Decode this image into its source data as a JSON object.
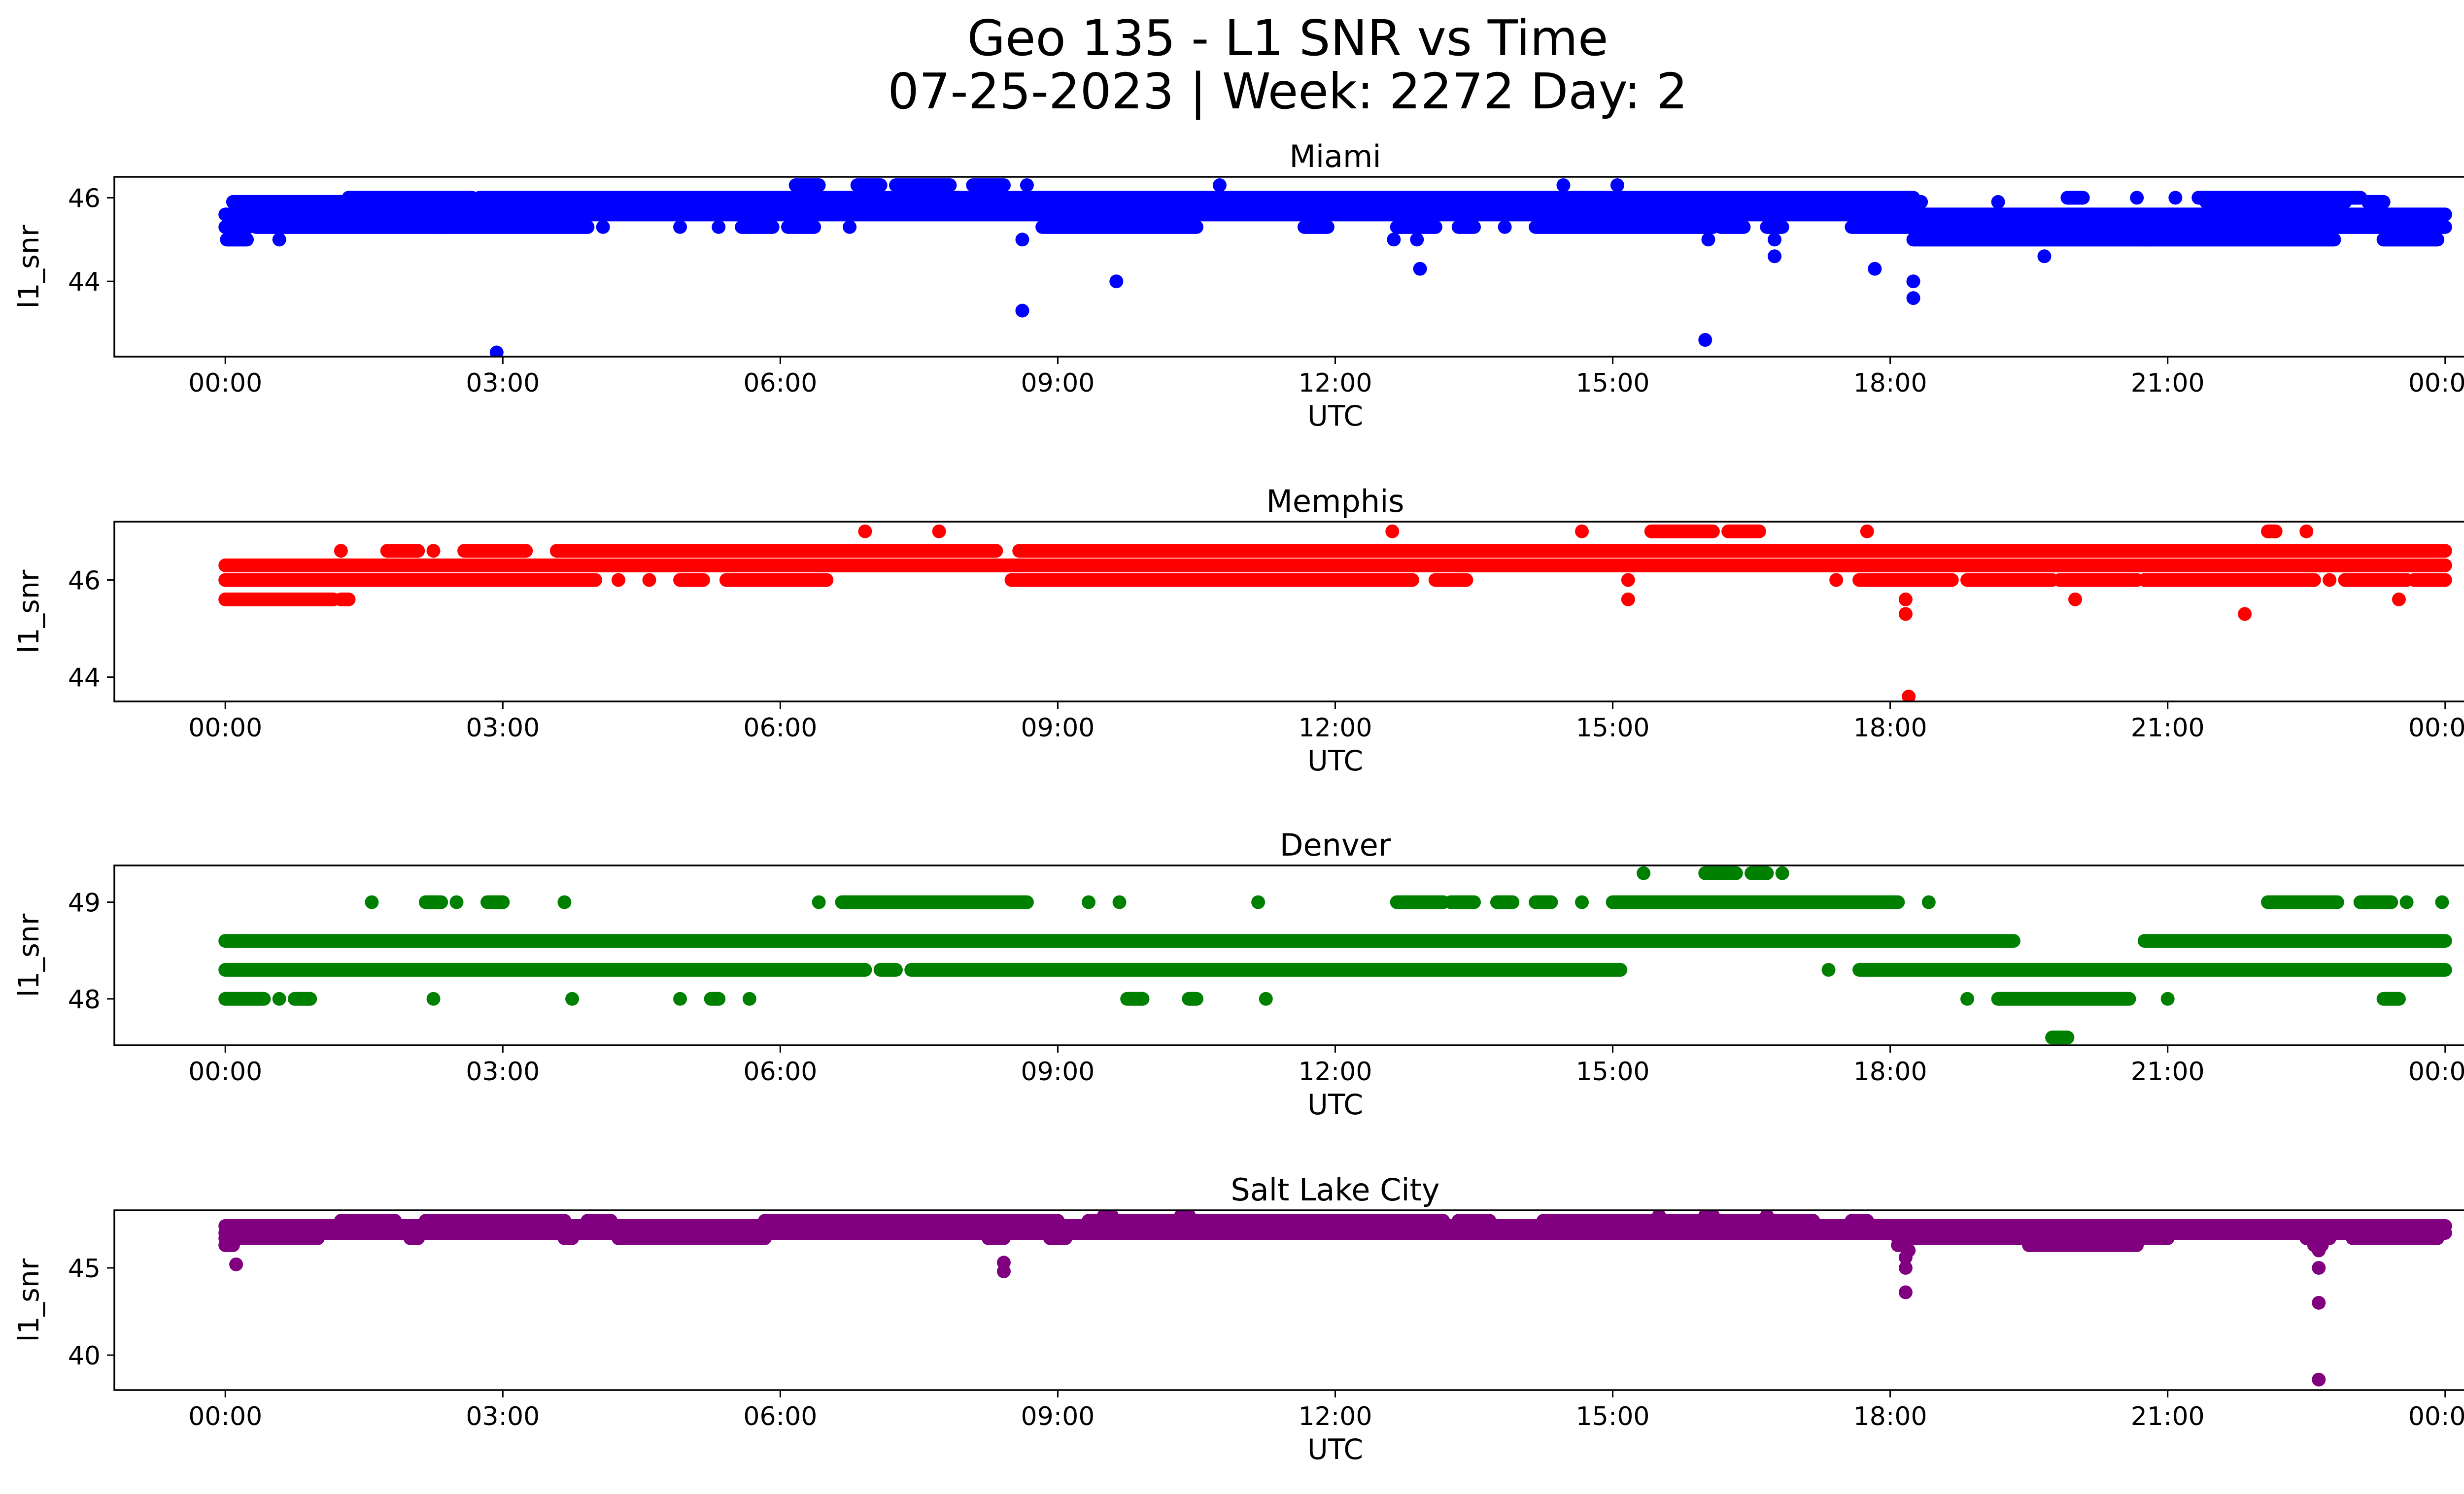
{
  "title_line1": "Geo 135 - L1 SNR vs Time",
  "title_line2": "07-25-2023 | Week: 2272 Day: 2",
  "chart_data": [
    {
      "type": "scatter",
      "title": "Miami",
      "xlabel": "UTC",
      "ylabel": "l1_snr",
      "color": "#0000ff",
      "xlim": [
        "00:00",
        "24:00"
      ],
      "ylim": [
        42.2,
        46.5
      ],
      "x_ticks": [
        "00:00",
        "03:00",
        "06:00",
        "09:00",
        "12:00",
        "15:00",
        "18:00",
        "21:00",
        "00:00"
      ],
      "y_ticks": [
        44,
        46
      ],
      "bands": [
        {
          "y": 45.0,
          "segments": [
            [
              "00:01",
              "00:14"
            ],
            [
              "00:35",
              "00:36"
            ],
            [
              "08:37",
              "08:38"
            ],
            [
              "12:38",
              "12:39"
            ],
            [
              "16:02",
              "16:03"
            ],
            [
              "18:15",
              "20:45"
            ],
            [
              "20:45",
              "22:48"
            ],
            [
              "23:20",
              "23:55"
            ]
          ]
        },
        {
          "y": 45.3,
          "segments": [
            [
              "00:00",
              "00:15"
            ],
            [
              "00:20",
              "02:20"
            ],
            [
              "02:20",
              "03:55"
            ],
            [
              "04:05",
              "04:06"
            ],
            [
              "04:55",
              "04:56"
            ],
            [
              "05:20",
              "05:21"
            ],
            [
              "05:35",
              "05:55"
            ],
            [
              "06:05",
              "06:22"
            ],
            [
              "06:45",
              "06:46"
            ],
            [
              "08:50",
              "10:30"
            ],
            [
              "11:40",
              "11:55"
            ],
            [
              "12:40",
              "13:05"
            ],
            [
              "13:20",
              "13:30"
            ],
            [
              "13:50",
              "13:51"
            ],
            [
              "14:10",
              "16:05"
            ],
            [
              "16:10",
              "16:25"
            ],
            [
              "16:40",
              "16:50"
            ],
            [
              "17:35",
              "24:00"
            ]
          ]
        },
        {
          "y": 45.6,
          "segments": [
            [
              "00:00",
              "24:00"
            ]
          ]
        },
        {
          "y": 45.9,
          "segments": [
            [
              "00:05",
              "17:55"
            ],
            [
              "17:55",
              "18:20"
            ],
            [
              "19:10",
              "19:11"
            ],
            [
              "21:25",
              "22:55"
            ],
            [
              "23:10",
              "23:20"
            ]
          ]
        },
        {
          "y": 46.0,
          "segments": [
            [
              "01:20",
              "02:40"
            ],
            [
              "02:45",
              "17:55"
            ],
            [
              "17:55",
              "18:15"
            ],
            [
              "19:55",
              "20:05"
            ],
            [
              "20:40",
              "20:41"
            ],
            [
              "21:05",
              "21:06"
            ],
            [
              "21:20",
              "23:05"
            ]
          ]
        },
        {
          "y": 46.3,
          "segments": [
            [
              "06:10",
              "06:25"
            ],
            [
              "06:50",
              "07:05"
            ],
            [
              "07:15",
              "07:50"
            ],
            [
              "08:05",
              "08:25"
            ],
            [
              "08:40",
              "08:41"
            ],
            [
              "10:45",
              "10:46"
            ],
            [
              "14:28",
              "14:29"
            ],
            [
              "15:03",
              "15:04"
            ]
          ]
        }
      ],
      "points": [
        [
          "02:56",
          42.3
        ],
        [
          "08:37",
          43.3
        ],
        [
          "09:38",
          44.0
        ],
        [
          "12:55",
          44.3
        ],
        [
          "12:53",
          45.0
        ],
        [
          "16:00",
          42.6
        ],
        [
          "16:45",
          44.6
        ],
        [
          "16:45",
          45.0
        ],
        [
          "17:50",
          44.3
        ],
        [
          "18:15",
          44.0
        ],
        [
          "18:15",
          43.6
        ],
        [
          "19:40",
          44.6
        ]
      ]
    },
    {
      "type": "scatter",
      "title": "Memphis",
      "xlabel": "UTC",
      "ylabel": "l1_snr",
      "color": "#ff0000",
      "xlim": [
        "00:00",
        "24:00"
      ],
      "ylim": [
        43.5,
        47.2
      ],
      "x_ticks": [
        "00:00",
        "03:00",
        "06:00",
        "09:00",
        "12:00",
        "15:00",
        "18:00",
        "21:00",
        "00:00"
      ],
      "y_ticks": [
        44,
        46
      ],
      "bands": [
        {
          "y": 45.6,
          "segments": [
            [
              "00:00",
              "01:10"
            ],
            [
              "01:15",
              "01:20"
            ],
            [
              "15:10",
              "15:11"
            ],
            [
              "18:10",
              "18:11"
            ],
            [
              "20:00",
              "20:01"
            ],
            [
              "23:30",
              "23:31"
            ]
          ]
        },
        {
          "y": 46.0,
          "segments": [
            [
              "00:00",
              "04:00"
            ],
            [
              "04:15",
              "04:16"
            ],
            [
              "04:35",
              "04:36"
            ],
            [
              "04:55",
              "05:10"
            ],
            [
              "05:25",
              "06:30"
            ],
            [
              "08:30",
              "12:50"
            ],
            [
              "13:05",
              "13:25"
            ],
            [
              "15:10",
              "15:11"
            ],
            [
              "17:25",
              "17:26"
            ],
            [
              "17:40",
              "18:40"
            ],
            [
              "18:50",
              "19:45"
            ],
            [
              "19:50",
              "20:40"
            ],
            [
              "20:45",
              "22:35"
            ],
            [
              "22:45",
              "22:46"
            ],
            [
              "22:55",
              "23:35"
            ],
            [
              "23:40",
              "24:00"
            ]
          ]
        },
        {
          "y": 46.3,
          "segments": [
            [
              "00:00",
              "24:00"
            ]
          ]
        },
        {
          "y": 46.6,
          "segments": [
            [
              "01:15",
              "01:16"
            ],
            [
              "01:45",
              "02:05"
            ],
            [
              "02:15",
              "02:16"
            ],
            [
              "02:35",
              "03:15"
            ],
            [
              "03:35",
              "08:20"
            ],
            [
              "08:35",
              "24:00"
            ]
          ]
        },
        {
          "y": 47.0,
          "segments": [
            [
              "06:55",
              "06:56"
            ],
            [
              "07:43",
              "07:44"
            ],
            [
              "12:37",
              "12:38"
            ],
            [
              "14:40",
              "14:41"
            ],
            [
              "15:25",
              "16:05"
            ],
            [
              "16:15",
              "16:35"
            ],
            [
              "17:45",
              "17:46"
            ],
            [
              "22:05",
              "22:10"
            ],
            [
              "22:30",
              "22:31"
            ]
          ]
        }
      ],
      "points": [
        [
          "18:10",
          45.3
        ],
        [
          "18:12",
          43.6
        ],
        [
          "21:50",
          45.3
        ]
      ]
    },
    {
      "type": "scatter",
      "title": "Denver",
      "xlabel": "UTC",
      "ylabel": "l1_snr",
      "color": "#008000",
      "xlim": [
        "00:00",
        "24:00"
      ],
      "ylim": [
        47.52,
        49.38
      ],
      "x_ticks": [
        "00:00",
        "03:00",
        "06:00",
        "09:00",
        "12:00",
        "15:00",
        "18:00",
        "21:00",
        "00:00"
      ],
      "y_ticks": [
        48,
        49
      ],
      "bands": [
        {
          "y": 47.6,
          "segments": [
            [
              "19:45",
              "19:55"
            ]
          ]
        },
        {
          "y": 48.0,
          "segments": [
            [
              "00:00",
              "00:25"
            ],
            [
              "00:35",
              "00:36"
            ],
            [
              "00:45",
              "00:55"
            ],
            [
              "02:15",
              "02:16"
            ],
            [
              "03:45",
              "03:46"
            ],
            [
              "04:55",
              "04:56"
            ],
            [
              "05:15",
              "05:20"
            ],
            [
              "05:40",
              "05:41"
            ],
            [
              "09:45",
              "09:55"
            ],
            [
              "10:25",
              "10:30"
            ],
            [
              "11:15",
              "11:16"
            ],
            [
              "18:50",
              "18:51"
            ],
            [
              "19:10",
              "20:35"
            ],
            [
              "21:00",
              "21:01"
            ],
            [
              "23:20",
              "23:30"
            ]
          ]
        },
        {
          "y": 48.3,
          "segments": [
            [
              "00:00",
              "06:55"
            ],
            [
              "07:05",
              "07:15"
            ],
            [
              "07:25",
              "15:05"
            ],
            [
              "17:20",
              "17:21"
            ],
            [
              "17:40",
              "24:00"
            ]
          ]
        },
        {
          "y": 48.6,
          "segments": [
            [
              "00:00",
              "00:10"
            ],
            [
              "00:10",
              "19:20"
            ],
            [
              "20:45",
              "24:00"
            ]
          ]
        },
        {
          "y": 49.0,
          "segments": [
            [
              "01:35",
              "01:36"
            ],
            [
              "02:10",
              "02:20"
            ],
            [
              "02:30",
              "02:31"
            ],
            [
              "02:50",
              "03:00"
            ],
            [
              "03:40",
              "03:41"
            ],
            [
              "06:25",
              "06:26"
            ],
            [
              "06:40",
              "08:40"
            ],
            [
              "09:20",
              "09:21"
            ],
            [
              "09:40",
              "09:41"
            ],
            [
              "11:10",
              "11:11"
            ],
            [
              "12:40",
              "13:10"
            ],
            [
              "13:15",
              "13:30"
            ],
            [
              "13:45",
              "13:55"
            ],
            [
              "14:10",
              "14:20"
            ],
            [
              "14:40",
              "14:41"
            ],
            [
              "15:00",
              "18:05"
            ],
            [
              "18:25",
              "18:26"
            ],
            [
              "22:05",
              "22:50"
            ],
            [
              "23:05",
              "23:25"
            ],
            [
              "23:35",
              "23:36"
            ],
            [
              "23:58",
              "23:59"
            ]
          ]
        },
        {
          "y": 49.3,
          "segments": [
            [
              "15:20",
              "15:21"
            ],
            [
              "16:00",
              "16:20"
            ],
            [
              "16:30",
              "16:40"
            ],
            [
              "16:50",
              "16:51"
            ]
          ]
        }
      ],
      "points": []
    },
    {
      "type": "scatter",
      "title": "Salt Lake City",
      "xlabel": "UTC",
      "ylabel": "l1_snr",
      "color": "#800080",
      "xlim": [
        "00:00",
        "24:00"
      ],
      "ylim": [
        38.0,
        48.3
      ],
      "x_ticks": [
        "00:00",
        "03:00",
        "06:00",
        "09:00",
        "12:00",
        "15:00",
        "18:00",
        "21:00",
        "00:00"
      ],
      "y_ticks": [
        40,
        45
      ],
      "bands": [
        {
          "y": 46.3,
          "segments": [
            [
              "00:00",
              "00:05"
            ],
            [
              "18:05",
              "18:10"
            ],
            [
              "19:30",
              "20:40"
            ],
            [
              "22:35",
              "22:40"
            ]
          ]
        },
        {
          "y": 46.7,
          "segments": [
            [
              "00:00",
              "00:05"
            ],
            [
              "00:05",
              "01:00"
            ],
            [
              "02:00",
              "02:05"
            ],
            [
              "03:40",
              "03:45"
            ],
            [
              "04:15",
              "05:50"
            ],
            [
              "08:15",
              "08:25"
            ],
            [
              "08:55",
              "09:05"
            ],
            [
              "18:05",
              "21:00"
            ],
            [
              "22:30",
              "22:45"
            ],
            [
              "23:00",
              "23:55"
            ]
          ]
        },
        {
          "y": 47.0,
          "segments": [
            [
              "00:00",
              "24:00"
            ]
          ]
        },
        {
          "y": 47.4,
          "segments": [
            [
              "00:00",
              "24:00"
            ]
          ]
        },
        {
          "y": 47.7,
          "segments": [
            [
              "01:15",
              "01:50"
            ],
            [
              "02:10",
              "03:40"
            ],
            [
              "03:55",
              "04:10"
            ],
            [
              "05:50",
              "09:00"
            ],
            [
              "09:20",
              "13:10"
            ],
            [
              "13:20",
              "13:40"
            ],
            [
              "14:15",
              "16:40"
            ],
            [
              "16:45",
              "17:10"
            ],
            [
              "17:35",
              "17:45"
            ]
          ]
        },
        {
          "y": 48.0,
          "segments": [
            [
              "09:30",
              "09:35"
            ],
            [
              "10:20",
              "10:25"
            ],
            [
              "15:30",
              "15:31"
            ],
            [
              "16:00",
              "16:05"
            ],
            [
              "16:40",
              "16:41"
            ]
          ]
        }
      ],
      "points": [
        [
          "00:07",
          45.2
        ],
        [
          "08:25",
          45.3
        ],
        [
          "08:25",
          44.8
        ],
        [
          "18:10",
          45.6
        ],
        [
          "18:10",
          45.0
        ],
        [
          "18:10",
          43.6
        ],
        [
          "18:12",
          46.0
        ],
        [
          "22:38",
          46.0
        ],
        [
          "22:38",
          45.0
        ],
        [
          "22:38",
          43.0
        ],
        [
          "22:38",
          38.6
        ]
      ]
    }
  ]
}
